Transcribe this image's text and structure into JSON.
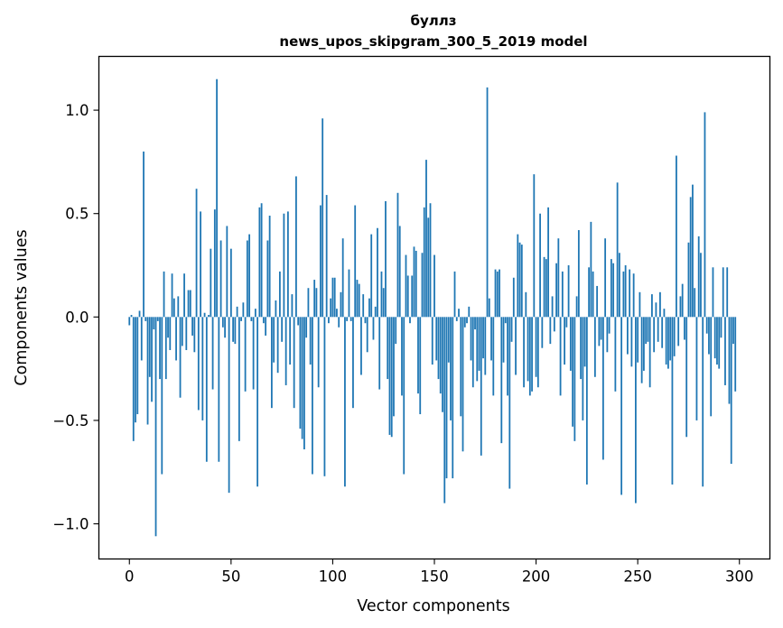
{
  "chart_data": {
    "type": "bar",
    "title_line1": "буллз",
    "title_line2": "news_upos_skipgram_300_5_2019 model",
    "xlabel": "Vector components",
    "ylabel": "Components values",
    "xlim": [
      -15,
      315
    ],
    "ylim": [
      -1.17,
      1.26
    ],
    "x_ticks": [
      0,
      50,
      100,
      150,
      200,
      250,
      300
    ],
    "x_tick_labels": [
      "0",
      "50",
      "100",
      "150",
      "200",
      "250",
      "300"
    ],
    "y_ticks": [
      -1.0,
      -0.5,
      0.0,
      0.5,
      1.0
    ],
    "y_tick_labels": [
      "−1.0",
      "−0.5",
      "0.0",
      "0.5",
      "1.0"
    ],
    "bar_color": "#1f77b4",
    "values": [
      -0.04,
      0.01,
      -0.6,
      -0.51,
      -0.47,
      0.03,
      -0.21,
      0.8,
      -0.02,
      -0.52,
      -0.29,
      -0.41,
      -0.06,
      -1.06,
      -0.02,
      -0.3,
      -0.76,
      0.22,
      -0.3,
      -0.1,
      -0.16,
      0.21,
      0.09,
      -0.21,
      0.1,
      -0.39,
      -0.14,
      0.21,
      -0.16,
      0.13,
      0.13,
      -0.09,
      -0.17,
      0.62,
      -0.45,
      0.51,
      -0.5,
      0.02,
      -0.7,
      0.01,
      0.33,
      -0.35,
      0.52,
      1.15,
      -0.7,
      0.37,
      -0.05,
      -0.1,
      0.44,
      -0.85,
      0.33,
      -0.12,
      -0.13,
      0.05,
      -0.6,
      -0.02,
      0.07,
      -0.36,
      0.37,
      0.4,
      -0.02,
      -0.35,
      0.04,
      -0.82,
      0.53,
      0.55,
      -0.03,
      -0.09,
      0.37,
      0.49,
      -0.44,
      -0.22,
      0.08,
      -0.27,
      0.22,
      -0.12,
      0.5,
      -0.33,
      0.51,
      -0.23,
      0.11,
      -0.44,
      0.68,
      -0.04,
      -0.54,
      -0.59,
      -0.64,
      -0.1,
      0.14,
      -0.23,
      -0.76,
      0.18,
      0.14,
      -0.34,
      0.54,
      0.96,
      -0.77,
      0.59,
      -0.03,
      0.09,
      0.19,
      0.19,
      0.04,
      -0.05,
      0.12,
      0.38,
      -0.82,
      -0.02,
      0.23,
      -0.02,
      -0.44,
      0.54,
      0.18,
      0.16,
      -0.28,
      0.11,
      -0.03,
      -0.17,
      0.09,
      0.4,
      -0.11,
      0.05,
      0.43,
      -0.35,
      0.22,
      0.14,
      0.56,
      -0.3,
      -0.57,
      -0.58,
      -0.48,
      -0.13,
      0.6,
      0.44,
      -0.38,
      -0.76,
      0.3,
      0.2,
      -0.03,
      0.2,
      0.34,
      0.32,
      -0.37,
      -0.47,
      0.31,
      0.53,
      0.76,
      0.48,
      0.55,
      -0.23,
      0.3,
      -0.21,
      -0.3,
      -0.37,
      -0.46,
      -0.9,
      -0.78,
      -0.22,
      -0.5,
      -0.78,
      0.22,
      -0.02,
      0.04,
      -0.48,
      -0.65,
      -0.05,
      -0.03,
      0.05,
      -0.21,
      -0.34,
      -0.06,
      -0.31,
      -0.26,
      -0.67,
      -0.2,
      -0.28,
      1.11,
      0.09,
      -0.21,
      -0.38,
      0.23,
      0.22,
      0.23,
      -0.61,
      -0.22,
      -0.03,
      -0.38,
      -0.83,
      -0.12,
      0.19,
      -0.28,
      0.4,
      0.36,
      0.35,
      -0.34,
      0.12,
      -0.31,
      -0.38,
      -0.36,
      0.69,
      -0.29,
      -0.34,
      0.5,
      -0.15,
      0.29,
      0.28,
      0.53,
      -0.13,
      0.1,
      -0.07,
      0.26,
      0.38,
      -0.38,
      0.22,
      -0.23,
      -0.05,
      0.25,
      -0.26,
      -0.53,
      -0.6,
      0.1,
      0.42,
      -0.3,
      -0.5,
      -0.24,
      -0.81,
      0.24,
      0.46,
      0.22,
      -0.29,
      0.15,
      -0.14,
      -0.11,
      -0.69,
      0.38,
      -0.17,
      -0.08,
      0.28,
      0.26,
      -0.36,
      0.65,
      0.31,
      -0.86,
      0.22,
      0.25,
      -0.18,
      0.23,
      -0.24,
      0.21,
      -0.9,
      -0.22,
      0.12,
      -0.32,
      -0.26,
      -0.13,
      -0.12,
      -0.34,
      0.11,
      -0.17,
      0.07,
      -0.12,
      0.12,
      -0.15,
      0.04,
      -0.23,
      -0.25,
      -0.21,
      -0.81,
      -0.19,
      0.78,
      -0.14,
      0.1,
      0.16,
      -0.11,
      -0.58,
      0.36,
      0.58,
      0.64,
      0.14,
      -0.5,
      0.39,
      0.31,
      -0.82,
      0.99,
      -0.08,
      -0.18,
      -0.48,
      0.24,
      -0.2,
      -0.23,
      -0.25,
      -0.1,
      0.24,
      -0.33,
      0.24,
      -0.42,
      -0.71,
      -0.13,
      -0.36
    ]
  }
}
